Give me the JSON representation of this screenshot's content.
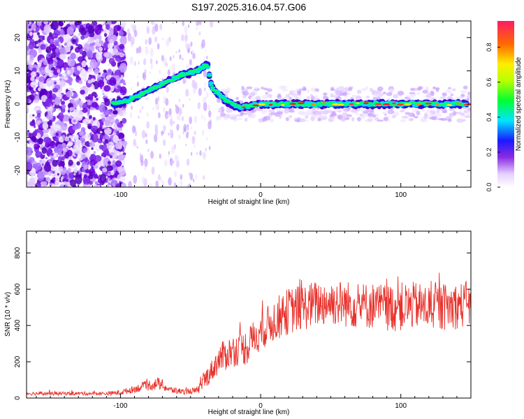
{
  "title": "S197.2025.316.04.57.G06",
  "chart_data": [
    {
      "type": "heatmap",
      "xlabel": "Height of straight line (km)",
      "ylabel": "Frequency (Hz)",
      "xlim": [
        -167,
        150
      ],
      "ylim": [
        -25,
        25
      ],
      "x_ticks": [
        -100,
        0,
        100
      ],
      "y_ticks": [
        -20,
        -10,
        0,
        10,
        20
      ],
      "colorbar": {
        "label": "Normalized spectral amplitude",
        "range": [
          0,
          0.95
        ],
        "ticks": [
          "0.0",
          "0.2",
          "0.4",
          "0.6",
          "0.8"
        ]
      },
      "ridge": {
        "description_points": [
          {
            "x": -105,
            "y": 0
          },
          {
            "x": -95,
            "y": 1
          },
          {
            "x": -80,
            "y": 4
          },
          {
            "x": -65,
            "y": 7
          },
          {
            "x": -55,
            "y": 9
          },
          {
            "x": -45,
            "y": 10
          },
          {
            "x": -38,
            "y": 12
          },
          {
            "x": -35,
            "y": 5
          },
          {
            "x": -25,
            "y": 1
          },
          {
            "x": -15,
            "y": -1
          },
          {
            "x": 0,
            "y": 0
          },
          {
            "x": 50,
            "y": 0
          },
          {
            "x": 100,
            "y": 0
          },
          {
            "x": 148,
            "y": 0
          }
        ]
      }
    },
    {
      "type": "line",
      "xlabel": "Height of straight line (km)",
      "ylabel": "SNR (10 * v/v)",
      "xlim": [
        -167,
        150
      ],
      "ylim": [
        0,
        920
      ],
      "x_ticks": [
        -100,
        0,
        100
      ],
      "y_ticks": [
        0,
        200,
        400,
        600,
        800
      ],
      "series": [
        {
          "name": "SNR",
          "color": "#e8302a",
          "x": [
            -167,
            -150,
            -130,
            -110,
            -100,
            -90,
            -80,
            -72,
            -65,
            -55,
            -45,
            -40,
            -35,
            -30,
            -25,
            -20,
            -15,
            -10,
            -5,
            0,
            5,
            10,
            20,
            30,
            40,
            50,
            60,
            70,
            80,
            90,
            100,
            110,
            120,
            130,
            140,
            150
          ],
          "mean": [
            25,
            25,
            25,
            25,
            30,
            50,
            70,
            80,
            45,
            35,
            40,
            100,
            150,
            210,
            240,
            260,
            270,
            280,
            330,
            360,
            400,
            430,
            480,
            500,
            520,
            530,
            520,
            510,
            510,
            500,
            500,
            510,
            500,
            500,
            510,
            520
          ],
          "spread": [
            10,
            10,
            10,
            10,
            15,
            20,
            30,
            35,
            20,
            15,
            20,
            50,
            60,
            80,
            90,
            90,
            90,
            100,
            100,
            100,
            110,
            120,
            130,
            130,
            130,
            130,
            130,
            130,
            130,
            130,
            140,
            130,
            130,
            130,
            130,
            130
          ]
        }
      ]
    }
  ]
}
